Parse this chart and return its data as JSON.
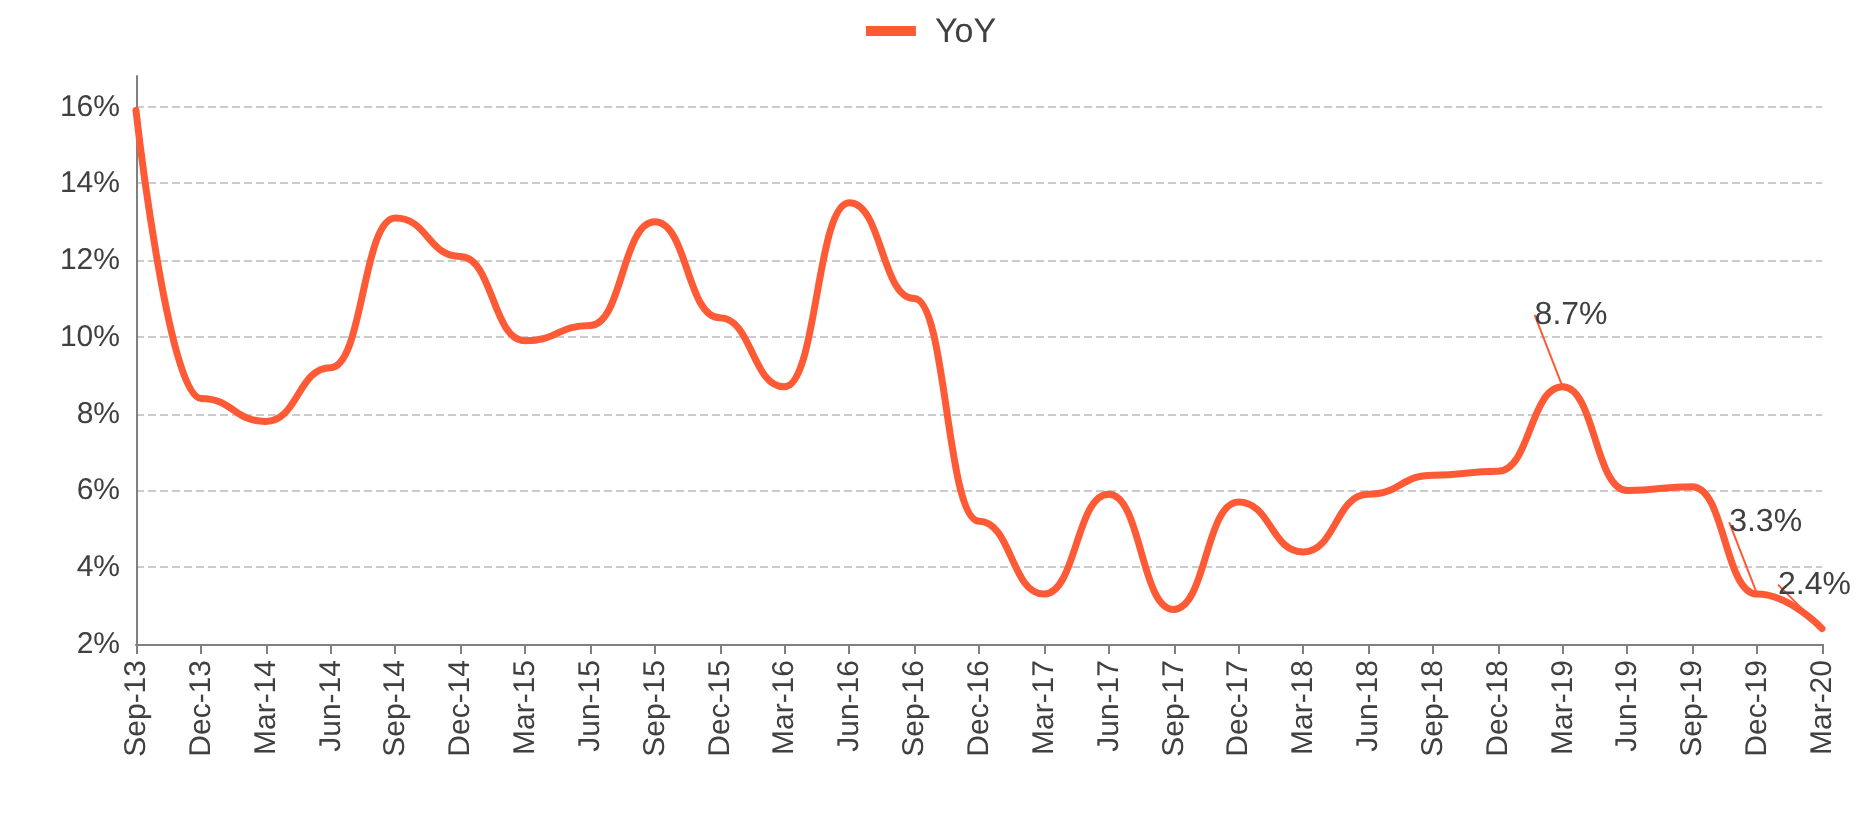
{
  "chart_data": {
    "type": "line",
    "categories": [
      "Sep-13",
      "Dec-13",
      "Mar-14",
      "Jun-14",
      "Sep-14",
      "Dec-14",
      "Mar-15",
      "Jun-15",
      "Sep-15",
      "Dec-15",
      "Mar-16",
      "Jun-16",
      "Sep-16",
      "Dec-16",
      "Mar-17",
      "Jun-17",
      "Sep-17",
      "Dec-17",
      "Mar-18",
      "Jun-18",
      "Sep-18",
      "Dec-18",
      "Mar-19",
      "Jun-19",
      "Sep-19",
      "Dec-19",
      "Mar-20"
    ],
    "series": [
      {
        "name": "YoY",
        "color": "#ff5a36",
        "values": [
          15.9,
          8.4,
          7.8,
          9.2,
          13.1,
          12.1,
          9.9,
          10.3,
          13.0,
          10.5,
          8.7,
          13.5,
          11.0,
          5.2,
          3.3,
          5.9,
          2.9,
          5.7,
          4.4,
          5.9,
          6.4,
          6.5,
          8.7,
          6.0,
          6.1,
          3.3,
          2.4
        ],
        "value_labels": [
          null,
          null,
          null,
          null,
          null,
          null,
          null,
          null,
          null,
          null,
          null,
          null,
          null,
          null,
          null,
          null,
          null,
          null,
          null,
          null,
          null,
          null,
          "8.7%",
          null,
          null,
          "3.3%",
          "2.4%"
        ]
      }
    ],
    "ylim": [
      2,
      16.8
    ],
    "yticks": [
      {
        "value": 2,
        "label": "2%"
      },
      {
        "value": 4,
        "label": "4%"
      },
      {
        "value": 6,
        "label": "6%"
      },
      {
        "value": 8,
        "label": "8%"
      },
      {
        "value": 10,
        "label": "10%"
      },
      {
        "value": 12,
        "label": "12%"
      },
      {
        "value": 14,
        "label": "14%"
      },
      {
        "value": 16,
        "label": "16%"
      }
    ],
    "grid": "y",
    "legend": "top",
    "marker": "none",
    "line_style": "solid"
  }
}
